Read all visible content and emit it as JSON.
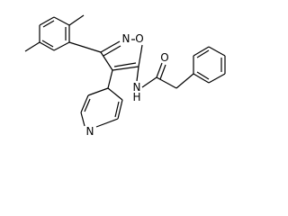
{
  "atoms": [
    {
      "label": "N"
    },
    {
      "label": "O"
    },
    {
      "label": "N"
    },
    {
      "label": "H"
    },
    {
      "label": "O"
    },
    {
      "label": "N"
    }
  ]
}
